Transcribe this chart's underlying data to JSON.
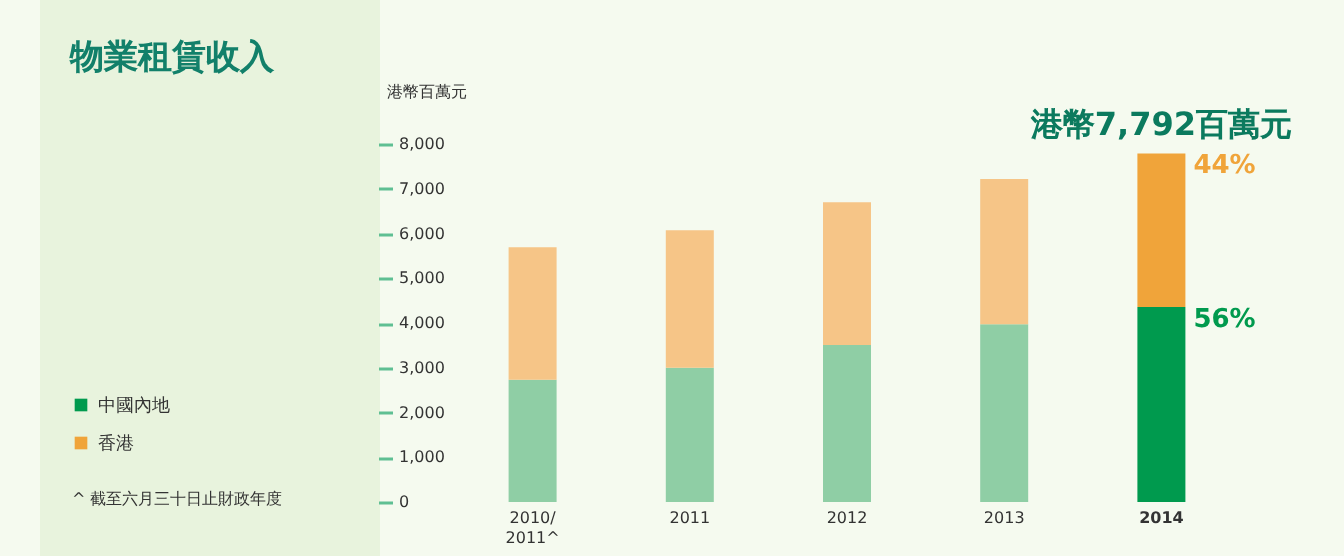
{
  "chart_data": {
    "type": "bar",
    "title": "物業租賃收入",
    "ylabel": "港幣百萬元",
    "stacked": true,
    "legend": "bottom left",
    "grid": false,
    "categories": [
      "2010/2011^",
      "2011",
      "2012",
      "2013",
      "2014"
    ],
    "series": [
      {
        "name": "中國內地",
        "color": "#009a4e",
        "colors": [
          "#8fcea5",
          "#8fcea5",
          "#8fcea5",
          "#8fcea5",
          "#009a4e"
        ],
        "values": [
          2730,
          3000,
          3510,
          3970,
          4360
        ]
      },
      {
        "name": "香港",
        "color": "#f0a43a",
        "colors": [
          "#f6c587",
          "#f6c587",
          "#f6c587",
          "#f6c587",
          "#f0a43a"
        ],
        "values": [
          2960,
          3070,
          3190,
          3250,
          3430
        ]
      }
    ],
    "ylim": [
      0,
      8000
    ],
    "yticks": [
      0,
      {
        "value": 1000,
        "label": "1,000"
      },
      {
        "value": 2000,
        "label": "2,000"
      },
      {
        "value": 3000,
        "label": "3,000"
      },
      {
        "value": 4000,
        "label": "4,000"
      },
      {
        "value": 5000,
        "label": "5,000"
      },
      {
        "value": 6000,
        "label": "6,000"
      },
      {
        "value": 7000,
        "label": "7,000"
      },
      {
        "value": 8000,
        "label": "8,000"
      }
    ],
    "annotations": [
      {
        "text": "港幣7,792百萬元",
        "x": "2014",
        "y": 7790
      },
      {
        "text": "44%",
        "x": "2014",
        "y": 7790
      },
      {
        "text": "56%",
        "x": "2014",
        "y": 4360
      },
      "^  截至六月三十日止財政年度"
    ]
  }
}
